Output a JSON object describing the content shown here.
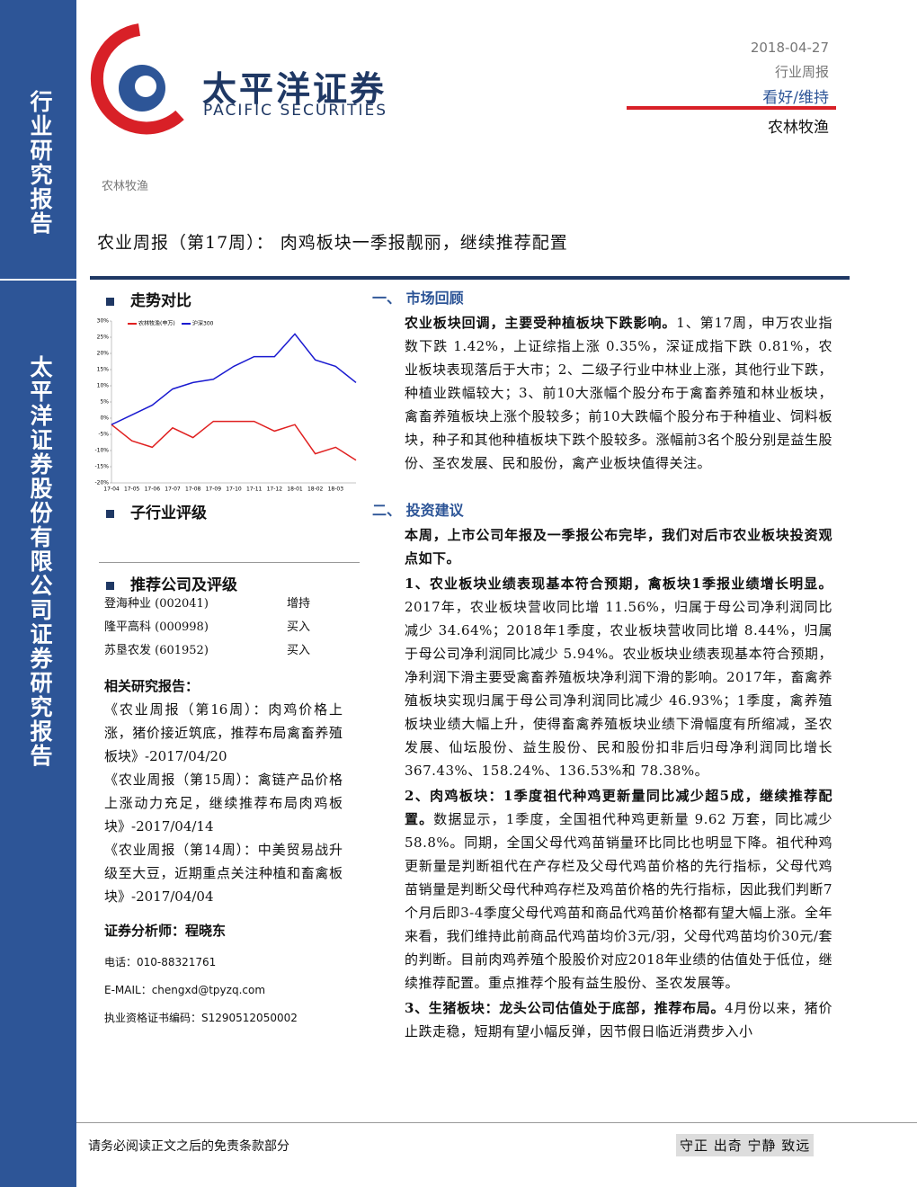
{
  "sidebar": {
    "top": "行业研究报告",
    "bottom": "太平洋证券股份有限公司证券研究报告"
  },
  "header": {
    "logo_cn": "太平洋证券",
    "logo_en": "PACIFIC SECURITIES",
    "date": "2018-04-27",
    "report_type": "行业周报",
    "rating": "看好/维持",
    "industry": "农林牧渔"
  },
  "category": "农林牧渔",
  "title": "农业周报（第17周）： 肉鸡板块一季报靓丽，继续推荐配置",
  "left": {
    "trend_heading": "走势对比",
    "sub_heading": "子行业评级",
    "rec_heading": "推荐公司及评级",
    "recommendations": [
      [
        "登海种业 (002041)",
        "增持"
      ],
      [
        "隆平高科 (000998)",
        "买入"
      ],
      [
        "苏垦农发 (601952)",
        "买入"
      ]
    ],
    "related_heading": "相关研究报告：",
    "related": [
      "《农业周报（第16周）：肉鸡价格上涨，猪价接近筑底，推荐布局禽畜养殖板块》-2017/04/20",
      "《农业周报（第15周）：禽链产品价格上涨动力充足，继续推荐布局肉鸡板块》-2017/04/14",
      "《农业周报（第14周）：中美贸易战升级至大豆，近期重点关注种植和畜禽板块》-2017/04/04"
    ],
    "analyst": "证券分析师：程晓东",
    "contacts": [
      "电话：010-88321761",
      "E-MAIL：chengxd@tpyzq.com",
      "执业资格证书编码：S1290512050002"
    ]
  },
  "chart": {
    "type": "line",
    "categories": [
      "17-04",
      "17-05",
      "17-06",
      "17-07",
      "17-08",
      "17-09",
      "17-10",
      "17-11",
      "17-12",
      "18-01",
      "18-02",
      "18-03",
      null
    ],
    "series": [
      {
        "name": "农林牧渔(申万)",
        "color": "#e02020",
        "values": [
          -2,
          -7,
          -9,
          -3,
          -6,
          -1,
          -1,
          -1,
          -4,
          -2,
          -11,
          -9,
          -13
        ]
      },
      {
        "name": "沪深300",
        "color": "#1a1ad0",
        "values": [
          -2,
          1,
          4,
          9,
          11,
          12,
          16,
          19,
          19,
          26,
          18,
          16,
          11
        ]
      }
    ],
    "ylim": [
      -20,
      30
    ],
    "yticks": [
      {
        "value": 30,
        "label": "30%"
      },
      {
        "value": 25,
        "label": "25%"
      },
      {
        "value": 20,
        "label": "20%"
      },
      {
        "value": 15,
        "label": "15%"
      },
      {
        "value": 10,
        "label": "10%"
      },
      {
        "value": 5,
        "label": "5%"
      },
      {
        "value": 0,
        "label": "0%"
      },
      {
        "value": -5,
        "label": "-5%"
      },
      {
        "value": -10,
        "label": "-10%"
      },
      {
        "value": -15,
        "label": "-15%"
      },
      {
        "value": -20,
        "label": "-20%"
      }
    ]
  },
  "sections": [
    {
      "heading": "一、 市场回顾",
      "paragraphs": [
        {
          "lead": "农业板块回调，主要受种植板块下跌影响。",
          "text": "1、第17周，申万农业指数下跌 1.42%，上证综指上涨 0.35%，深证成指下跌 0.81%，农业板块表现落后于大市；2、二级子行业中林业上涨，其他行业下跌，种植业跌幅较大；3、前10大涨幅个股分布于禽畜养殖和林业板块，禽畜养殖板块上涨个股较多；前10大跌幅个股分布于种植业、饲料板块，种子和其他种植板块下跌个股较多。涨幅前3名个股分别是益生股份、圣农发展、民和股份，禽产业板块值得关注。"
        }
      ]
    },
    {
      "heading": "二、 投资建议",
      "paragraphs": [
        {
          "lead": "本周，上市公司年报及一季报公布完毕，我们对后市农业板块投资观点如下。",
          "text": ""
        },
        {
          "lead": "1、农业板块业绩表现基本符合预期，禽板块1季报业绩增长明显。",
          "text": "2017年，农业板块营收同比增 11.56%，归属于母公司净利润同比减少 34.64%；2018年1季度，农业板块营收同比增 8.44%，归属于母公司净利润同比减少 5.94%。农业板块业绩表现基本符合预期，净利润下滑主要受禽畜养殖板块净利润下滑的影响。2017年，畜禽养殖板块实现归属于母公司净利润同比减少 46.93%；1季度，禽养殖板块业绩大幅上升，使得畜禽养殖板块业绩下滑幅度有所缩减，圣农发展、仙坛股份、益生股份、民和股份扣非后归母净利润同比增长 367.43%、158.24%、136.53%和 78.38%。"
        },
        {
          "lead": "2、肉鸡板块：1季度祖代种鸡更新量同比减少超5成，继续推荐配置。",
          "text": "数据显示，1季度，全国祖代种鸡更新量 9.62 万套，同比减少 58.8%。同期，全国父母代鸡苗销量环比同比也明显下降。祖代种鸡更新量是判断祖代在产存栏及父母代鸡苗价格的先行指标，父母代鸡苗销量是判断父母代种鸡存栏及鸡苗价格的先行指标，因此我们判断7个月后即3-4季度父母代鸡苗和商品代鸡苗价格都有望大幅上涨。全年来看，我们维持此前商品代鸡苗均价3元/羽，父母代鸡苗均价30元/套的判断。目前肉鸡养殖个股股价对应2018年业绩的估值处于低位，继续推荐配置。重点推荐个股有益生股份、圣农发展等。"
        },
        {
          "lead": "3、生猪板块：龙头公司估值处于底部，推荐布局。",
          "text": "4月份以来，猪价止跌走稳，短期有望小幅反弹，因节假日临近消费步入小"
        }
      ]
    }
  ],
  "footer": {
    "disclaimer": "请务必阅读正文之后的免责条款部分",
    "motto": "守正 出奇 宁静 致远"
  }
}
